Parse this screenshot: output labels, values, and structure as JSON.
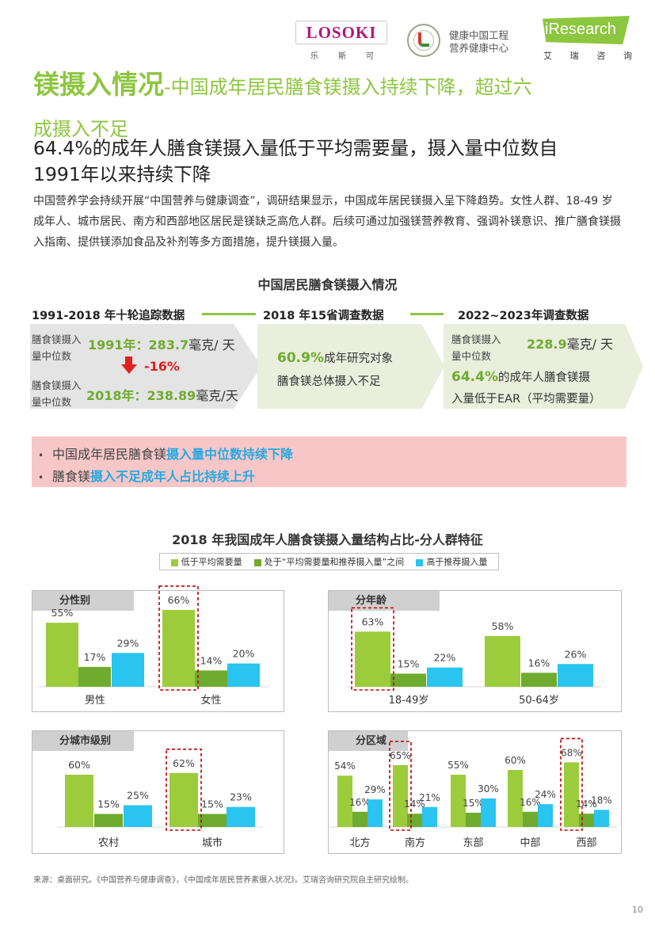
{
  "header": {
    "losoki_logo": "LOSOKI",
    "losoki_sub": [
      "乐",
      "斯",
      "可"
    ],
    "health_line1": "健康中国工程",
    "health_line2": "营养健康中心",
    "iresearch_logo": "iResearch",
    "iresearch_sub": [
      "艾",
      "瑞",
      "咨",
      "询"
    ]
  },
  "title": {
    "main": "镁摄入情况",
    "rest_line1": "-中国成年居民膳食镁摄入持续下降，超过六",
    "rest_line2": "成摄入不足"
  },
  "subtitle": {
    "line1": "64.4%的成年人膳食镁摄入量低于平均需要量，摄入量中位数自",
    "line2": "1991年以来持续下降"
  },
  "body_text": "中国营养学会持续开展“中国营养与健康调查”，调研结果显示，中国成年居民镁摄入呈下降趋势。女性人群、18-49 岁成年人、城市居民、南方和西部地区居民是镁缺乏高危人群。后续可通过加强镁营养教育、强调补镁意识、推广膳食镁摄入指南、提供镁添加食品及补剂等多方面措施，提升镁摄入量。",
  "intake_section": {
    "title": "中国居民膳食镁摄入情况",
    "col1": {
      "heading": "1991-2018 年十轮追踪数据",
      "row1_label": [
        "膳食镁摄入",
        "量中位数"
      ],
      "row1_year": "1991年：",
      "row1_value": "283.7",
      "row1_unit": "毫克/ 天",
      "change": "-16%",
      "row2_label": [
        "膳食镁摄入",
        "量中位数"
      ],
      "row2_year": "2018年：",
      "row2_value": "238.89",
      "row2_unit": "毫克/天"
    },
    "col2": {
      "heading": "2018 年15省调查数据",
      "pct": "60.9%",
      "line1": "成年研究对象",
      "line2": "膳食镁总体摄入不足"
    },
    "col3": {
      "heading": "2022~2023年调查数据",
      "label": [
        "膳食镁摄入",
        "量中位数"
      ],
      "value": "228.9",
      "unit": "毫克/ 天",
      "pct": "64.4%",
      "line1": "的成年人膳食镁摄",
      "line2": "入量低于EAR（平均需要量）"
    }
  },
  "highlights": [
    {
      "bullet": "•",
      "plain": "中国成年居民膳食镁",
      "emph": "摄入量中位数持续下降"
    },
    {
      "bullet": "•",
      "plain": "膳食镁",
      "emph": "摄入不足成年人占比持续上升"
    }
  ],
  "structure_title": "2018 年我国成年人膳食镁摄入量结构占比-分人群特征",
  "legend": [
    {
      "label": "低于平均需要量",
      "color": "#9ccc3c"
    },
    {
      "label": "处于“平均需要量和推荐摄入量”之间",
      "color": "#6fab2f"
    },
    {
      "label": "高于推荐摄入量",
      "color": "#29c4ef"
    }
  ],
  "colors": {
    "green_light": "#9ccc3c",
    "green_dark": "#6fab2f",
    "cyan": "#29c4ef",
    "highlight_red": "#c00000"
  },
  "chart_data": [
    {
      "type": "bar",
      "title": "分性别",
      "categories": [
        "男性",
        "女性"
      ],
      "series": [
        {
          "name": "低于平均需要量",
          "values": [
            55,
            66
          ]
        },
        {
          "name": "处于“平均需要量和推荐摄入量”之间",
          "values": [
            17,
            14
          ]
        },
        {
          "name": "高于推荐摄入量",
          "values": [
            29,
            20
          ]
        }
      ],
      "value_labels": [
        [
          "55%",
          "17%",
          "29%"
        ],
        [
          "66%",
          "14%",
          "20%"
        ]
      ],
      "highlighted": [
        1
      ],
      "ylim": [
        0,
        100
      ]
    },
    {
      "type": "bar",
      "title": "分年龄",
      "categories": [
        "18-49岁",
        "50-64岁"
      ],
      "series": [
        {
          "name": "低于平均需要量",
          "values": [
            63,
            58
          ]
        },
        {
          "name": "处于“平均需要量和推荐摄入量”之间",
          "values": [
            15,
            16
          ]
        },
        {
          "name": "高于推荐摄入量",
          "values": [
            22,
            26
          ]
        }
      ],
      "value_labels": [
        [
          "63%",
          "15%",
          "22%"
        ],
        [
          "58%",
          "16%",
          "26%"
        ]
      ],
      "highlighted": [
        0
      ],
      "ylim": [
        0,
        100
      ]
    },
    {
      "type": "bar",
      "title": "分城市级别",
      "categories": [
        "农村",
        "城市"
      ],
      "series": [
        {
          "name": "低于平均需要量",
          "values": [
            60,
            62
          ]
        },
        {
          "name": "处于“平均需要量和推荐摄入量”之间",
          "values": [
            15,
            15
          ]
        },
        {
          "name": "高于推荐摄入量",
          "values": [
            25,
            23
          ]
        }
      ],
      "value_labels": [
        [
          "60%",
          "15%",
          "25%"
        ],
        [
          "62%",
          "15%",
          "23%"
        ]
      ],
      "highlighted": [
        1
      ],
      "ylim": [
        0,
        100
      ]
    },
    {
      "type": "bar",
      "title": "分区域",
      "categories": [
        "北方",
        "南方",
        "东部",
        "中部",
        "西部"
      ],
      "series": [
        {
          "name": "低于平均需要量",
          "values": [
            54,
            65,
            55,
            60,
            68
          ]
        },
        {
          "name": "处于“平均需要量和推荐摄入量”之间",
          "values": [
            16,
            14,
            15,
            16,
            14
          ]
        },
        {
          "name": "高于推荐摄入量",
          "values": [
            29,
            21,
            30,
            24,
            18
          ]
        }
      ],
      "value_labels": [
        [
          "54%",
          "16%",
          "29%"
        ],
        [
          "65%",
          "14%",
          "21%"
        ],
        [
          "55%",
          "15%",
          "30%"
        ],
        [
          "60%",
          "16%",
          "24%"
        ],
        [
          "68%",
          "14%",
          "18%"
        ]
      ],
      "highlighted": [
        1,
        4
      ],
      "ylim": [
        0,
        100
      ]
    }
  ],
  "source": "来源：桌面研究。《中国营养与健康调查》，《中国成年居民营养素摄入状况》。艾瑞咨询研究院自主研究绘制。",
  "page_number": "10"
}
